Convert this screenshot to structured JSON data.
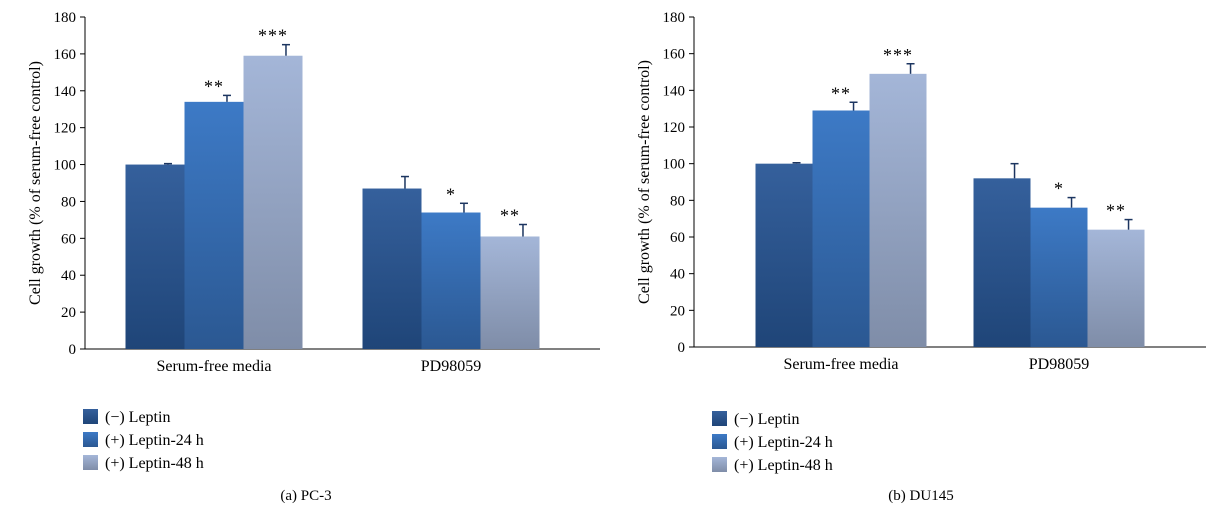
{
  "chart_data": [
    {
      "type": "bar",
      "caption": "(a)  PC-3",
      "ylabel": "Cell growth (% of serum-free control)",
      "ylim": [
        0,
        180
      ],
      "yticks": [
        0,
        20,
        40,
        60,
        80,
        100,
        120,
        140,
        160,
        180
      ],
      "categories": [
        "Serum-free media",
        "PD98059"
      ],
      "series": [
        {
          "name": "(−) Leptin",
          "values": [
            100,
            87
          ],
          "errors": [
            0.5,
            6.5
          ],
          "sig": [
            "",
            ""
          ]
        },
        {
          "name": "(+) Leptin-24 h",
          "values": [
            134,
            74
          ],
          "errors": [
            3.5,
            5
          ],
          "sig": [
            "**",
            "*"
          ]
        },
        {
          "name": "(+) Leptin-48 h",
          "values": [
            159,
            61
          ],
          "errors": [
            6,
            6.5
          ],
          "sig": [
            "***",
            "**"
          ]
        }
      ]
    },
    {
      "type": "bar",
      "caption": "(b)  DU145",
      "ylabel": "Cell growth (% of serum-free control)",
      "ylim": [
        0,
        180
      ],
      "yticks": [
        0,
        20,
        40,
        60,
        80,
        100,
        120,
        140,
        160,
        180
      ],
      "categories": [
        "Serum-free media",
        "PD98059"
      ],
      "series": [
        {
          "name": "(−) Leptin",
          "values": [
            100,
            92
          ],
          "errors": [
            0.5,
            8
          ],
          "sig": [
            "",
            ""
          ]
        },
        {
          "name": "(+) Leptin-24 h",
          "values": [
            129,
            76
          ],
          "errors": [
            4.5,
            5.5
          ],
          "sig": [
            "**",
            "*"
          ]
        },
        {
          "name": "(+) Leptin-48 h",
          "values": [
            149,
            64
          ],
          "errors": [
            5.5,
            5.5
          ],
          "sig": [
            "***",
            "**"
          ]
        }
      ]
    }
  ],
  "colors": {
    "series0": [
      "#35609c",
      "#1f4578"
    ],
    "series1": [
      "#3d7ac6",
      "#2b5892"
    ],
    "series2": [
      "#a4b6d8",
      "#7f8da8"
    ]
  }
}
